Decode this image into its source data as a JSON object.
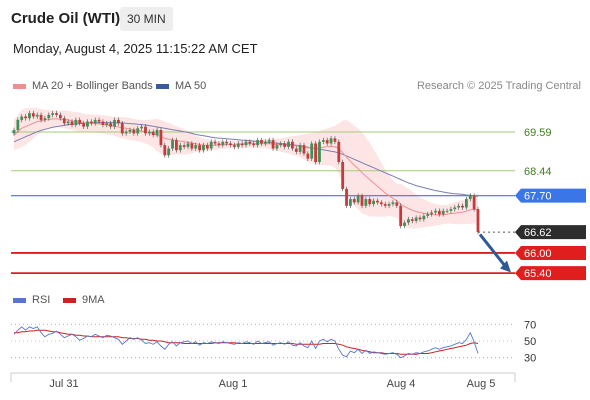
{
  "header": {
    "title": "Crude Oil (WTI)",
    "timeframe": "30 MIN",
    "datetime": "Monday, August 4, 2025 11:15:22 AM CET"
  },
  "legend": {
    "ma20_label": "MA 20 + Bollinger Bands",
    "ma50_label": "MA 50",
    "copyright": "Research © 2025 Trading Central",
    "rsi_label": "RSI",
    "ma9_label": "9MA"
  },
  "colors": {
    "ma20": "#ef8f8f",
    "bands_fill": "#fde0e0",
    "ma50": "#7a7fb0",
    "resistance": "#a3cc7a",
    "current": "#3b76e8",
    "support": "#e01e1e",
    "last": "#2d2d2d",
    "candle_up": "#3f8f57",
    "candle_down": "#c53a3a",
    "rsi": "#5577cc",
    "rsi_ma": "#d02020",
    "arrow": "#2c5a97"
  },
  "chart_data": {
    "type": "candlestick",
    "ylim": [
      64.9,
      70.6
    ],
    "x_labels": [
      "Jul 31",
      "Aug 1",
      "Aug 4",
      "Aug 5"
    ],
    "levels": [
      {
        "name": "resistance-2",
        "value": 69.59,
        "label": "69.59",
        "style": "resistance"
      },
      {
        "name": "resistance-1",
        "value": 68.44,
        "label": "68.44",
        "style": "resistance"
      },
      {
        "name": "pivot",
        "value": 67.7,
        "label": "67.70",
        "style": "current"
      },
      {
        "name": "last-price",
        "value": 66.62,
        "label": "66.62",
        "style": "last"
      },
      {
        "name": "support-1",
        "value": 66.0,
        "label": "66.00",
        "style": "support"
      },
      {
        "name": "support-2",
        "value": 65.4,
        "label": "65.40",
        "style": "support"
      }
    ],
    "closes": [
      69.65,
      69.95,
      70.05,
      70.0,
      70.15,
      70.05,
      70.1,
      69.95,
      70.0,
      70.1,
      70.15,
      70.1,
      70.0,
      69.85,
      69.9,
      69.8,
      69.95,
      69.85,
      69.75,
      69.9,
      69.85,
      69.95,
      69.9,
      69.8,
      69.85,
      69.75,
      69.95,
      69.85,
      69.55,
      69.6,
      69.65,
      69.55,
      69.7,
      69.75,
      69.55,
      69.6,
      69.5,
      69.65,
      69.2,
      68.9,
      69.1,
      69.35,
      69.05,
      69.2,
      69.15,
      69.25,
      69.1,
      69.2,
      69.05,
      69.2,
      69.1,
      69.3,
      69.25,
      69.2,
      69.3,
      69.25,
      69.2,
      69.15,
      69.25,
      69.2,
      69.3,
      69.25,
      69.2,
      69.35,
      69.25,
      69.3,
      69.35,
      69.1,
      69.2,
      69.25,
      69.15,
      69.3,
      69.1,
      69.0,
      69.2,
      68.95,
      68.8,
      69.25,
      68.7,
      69.3,
      69.35,
      69.25,
      69.4,
      69.3,
      68.7,
      67.9,
      67.4,
      67.6,
      67.5,
      67.7,
      67.4,
      67.6,
      67.45,
      67.55,
      67.5,
      67.45,
      67.4,
      67.45,
      67.5,
      67.4,
      66.8,
      66.9,
      67.0,
      66.95,
      67.05,
      67.0,
      67.1,
      67.15,
      67.2,
      67.25,
      67.15,
      67.25,
      67.25,
      67.3,
      67.35,
      67.4,
      67.35,
      67.6,
      67.7,
      67.3,
      66.62
    ],
    "ma20": [
      69.5,
      69.6,
      69.7,
      69.75,
      69.8,
      69.85,
      69.9,
      69.92,
      69.95,
      69.96,
      69.98,
      69.98,
      69.97,
      69.96,
      69.95,
      69.92,
      69.9,
      69.88,
      69.86,
      69.85,
      69.85,
      69.84,
      69.83,
      69.82,
      69.8,
      69.78,
      69.76,
      69.74,
      69.72,
      69.7,
      69.68,
      69.66,
      69.64,
      69.62,
      69.6,
      69.58,
      69.55,
      69.5,
      69.45,
      69.4,
      69.38,
      69.36,
      69.34,
      69.32,
      69.3,
      69.28,
      69.26,
      69.24,
      69.22,
      69.2,
      69.2,
      69.2,
      69.2,
      69.21,
      69.21,
      69.22,
      69.22,
      69.22,
      69.23,
      69.23,
      69.24,
      69.24,
      69.24,
      69.24,
      69.24,
      69.24,
      69.24,
      69.23,
      69.22,
      69.21,
      69.2,
      69.2,
      69.19,
      69.18,
      69.17,
      69.15,
      69.12,
      69.12,
      69.1,
      69.12,
      69.14,
      69.15,
      69.16,
      69.15,
      69.1,
      68.98,
      68.85,
      68.72,
      68.6,
      68.5,
      68.38,
      68.28,
      68.18,
      68.08,
      67.98,
      67.88,
      67.78,
      67.7,
      67.62,
      67.55,
      67.45,
      67.38,
      67.32,
      67.27,
      67.23,
      67.2,
      67.18,
      67.16,
      67.14,
      67.13,
      67.13,
      67.14,
      67.15,
      67.17,
      67.18,
      67.2,
      67.21,
      67.24,
      67.28,
      67.3,
      67.28
    ],
    "ma50": [
      69.3,
      69.35,
      69.4,
      69.45,
      69.5,
      69.55,
      69.6,
      69.64,
      69.67,
      69.7,
      69.73,
      69.75,
      69.77,
      69.79,
      69.81,
      69.82,
      69.83,
      69.84,
      69.85,
      69.86,
      69.86,
      69.87,
      69.87,
      69.87,
      69.87,
      69.87,
      69.87,
      69.86,
      69.86,
      69.85,
      69.84,
      69.83,
      69.82,
      69.81,
      69.8,
      69.78,
      69.76,
      69.74,
      69.72,
      69.7,
      69.68,
      69.66,
      69.64,
      69.62,
      69.6,
      69.58,
      69.55,
      69.52,
      69.5,
      69.48,
      69.46,
      69.44,
      69.42,
      69.41,
      69.4,
      69.39,
      69.38,
      69.37,
      69.36,
      69.35,
      69.34,
      69.33,
      69.32,
      69.31,
      69.3,
      69.29,
      69.28,
      69.27,
      69.26,
      69.25,
      69.24,
      69.22,
      69.21,
      69.2,
      69.18,
      69.16,
      69.14,
      69.12,
      69.1,
      69.08,
      69.06,
      69.04,
      69.02,
      69.0,
      68.97,
      68.93,
      68.88,
      68.83,
      68.78,
      68.73,
      68.68,
      68.63,
      68.58,
      68.53,
      68.48,
      68.43,
      68.38,
      68.33,
      68.28,
      68.23,
      68.18,
      68.13,
      68.08,
      68.04,
      68.0,
      67.97,
      67.94,
      67.91,
      67.88,
      67.85,
      67.83,
      67.81,
      67.79,
      67.77,
      67.76,
      67.75,
      67.74,
      67.72,
      67.71,
      67.7,
      67.68
    ],
    "bands_width": [
      0.45,
      0.5,
      0.55,
      0.55,
      0.5,
      0.45,
      0.4,
      0.35,
      0.3,
      0.28,
      0.25,
      0.25,
      0.25,
      0.26,
      0.27,
      0.28,
      0.28,
      0.28,
      0.27,
      0.27,
      0.27,
      0.27,
      0.27,
      0.27,
      0.28,
      0.28,
      0.28,
      0.3,
      0.32,
      0.33,
      0.33,
      0.32,
      0.32,
      0.33,
      0.35,
      0.38,
      0.42,
      0.48,
      0.5,
      0.5,
      0.48,
      0.45,
      0.42,
      0.4,
      0.38,
      0.35,
      0.3,
      0.25,
      0.22,
      0.2,
      0.18,
      0.15,
      0.14,
      0.12,
      0.12,
      0.12,
      0.12,
      0.12,
      0.12,
      0.12,
      0.12,
      0.12,
      0.12,
      0.12,
      0.13,
      0.14,
      0.15,
      0.16,
      0.18,
      0.2,
      0.22,
      0.25,
      0.28,
      0.3,
      0.33,
      0.38,
      0.42,
      0.45,
      0.48,
      0.5,
      0.52,
      0.55,
      0.58,
      0.62,
      0.75,
      0.95,
      1.1,
      1.15,
      1.18,
      1.2,
      1.2,
      1.15,
      1.1,
      1.0,
      0.9,
      0.8,
      0.7,
      0.6,
      0.55,
      0.5,
      0.6,
      0.6,
      0.58,
      0.55,
      0.5,
      0.45,
      0.42,
      0.38,
      0.35,
      0.32,
      0.3,
      0.28,
      0.28,
      0.3,
      0.32,
      0.35,
      0.36,
      0.38,
      0.42,
      0.42,
      0.5
    ],
    "rsi": {
      "ticks": [
        70,
        50,
        30
      ],
      "ylim": [
        20,
        80
      ],
      "values": [
        58,
        63,
        67,
        63,
        67,
        65,
        67,
        60,
        55,
        58,
        59,
        62,
        58,
        54,
        56,
        58,
        55,
        51,
        53,
        56,
        55,
        58,
        56,
        54,
        57,
        56,
        54,
        52,
        46,
        50,
        54,
        52,
        54,
        51,
        47,
        48,
        46,
        49,
        44,
        40,
        46,
        49,
        44,
        48,
        49,
        50,
        47,
        49,
        45,
        48,
        47,
        49,
        48,
        47,
        49,
        48,
        47,
        46,
        48,
        47,
        49,
        48,
        46,
        50,
        47,
        48,
        49,
        45,
        47,
        48,
        46,
        49,
        45,
        44,
        48,
        44,
        42,
        50,
        41,
        50,
        52,
        49,
        52,
        50,
        40,
        33,
        31,
        38,
        36,
        40,
        35,
        39,
        35,
        37,
        36,
        35,
        34,
        35,
        36,
        34,
        30,
        32,
        35,
        34,
        36,
        35,
        37,
        38,
        40,
        42,
        40,
        42,
        43,
        44,
        46,
        48,
        47,
        52,
        60,
        49,
        35
      ],
      "ma": [
        60,
        60,
        61,
        61,
        62,
        62,
        63,
        63,
        63,
        62,
        61,
        61,
        60,
        59,
        58,
        58,
        57,
        57,
        56,
        56,
        55,
        55,
        55,
        55,
        55,
        55,
        55,
        55,
        54,
        54,
        53,
        53,
        53,
        52,
        52,
        51,
        51,
        50,
        50,
        49,
        48,
        48,
        48,
        48,
        47,
        47,
        47,
        47,
        47,
        47,
        47,
        47,
        48,
        48,
        48,
        48,
        48,
        48,
        47,
        47,
        47,
        47,
        47,
        47,
        47,
        47,
        47,
        47,
        47,
        47,
        47,
        47,
        47,
        46,
        46,
        46,
        46,
        46,
        46,
        46,
        47,
        47,
        47,
        47,
        46,
        45,
        43,
        42,
        41,
        40,
        39,
        38,
        37,
        36,
        36,
        36,
        35,
        35,
        35,
        35,
        34,
        34,
        34,
        34,
        34,
        35,
        35,
        35,
        36,
        37,
        38,
        39,
        40,
        41,
        42,
        43,
        44,
        45,
        47,
        48,
        47
      ]
    }
  }
}
